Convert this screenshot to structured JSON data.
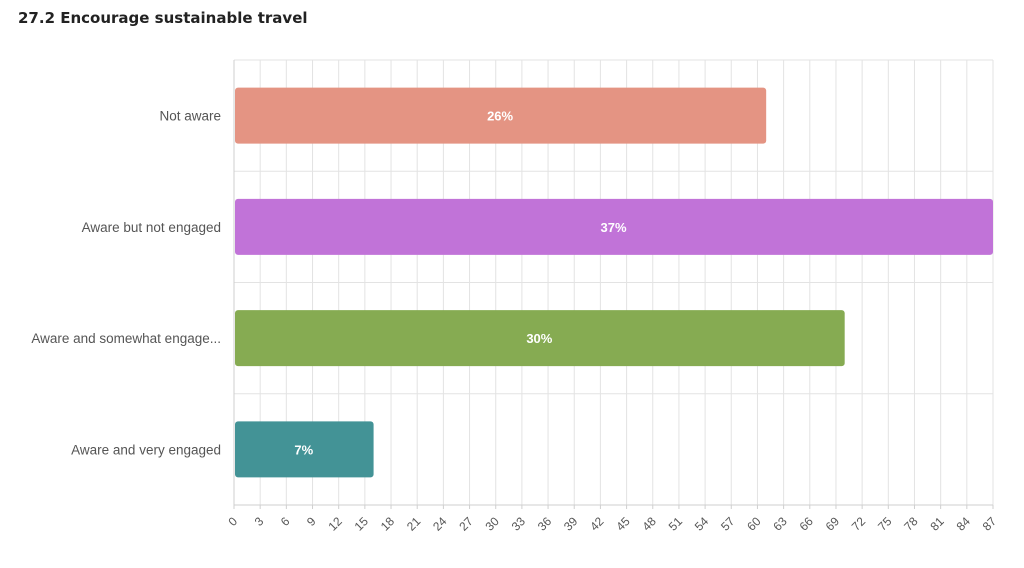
{
  "page": {
    "title": "27.2 Encourage sustainable travel"
  },
  "chart_data": {
    "type": "bar",
    "orientation": "horizontal",
    "title": "27.2 Encourage sustainable travel",
    "categories": [
      "Not aware",
      "Aware but not engaged",
      "Aware and somewhat engage...",
      "Aware and very engaged"
    ],
    "values": [
      61,
      87,
      70,
      16
    ],
    "data_labels": [
      "26%",
      "37%",
      "30%",
      "7%"
    ],
    "colors": [
      "#e49483",
      "#c173d8",
      "#86ab52",
      "#439396"
    ],
    "xlim": [
      0,
      87
    ],
    "xticks": [
      0,
      3,
      6,
      9,
      12,
      15,
      18,
      21,
      24,
      27,
      30,
      33,
      36,
      39,
      42,
      45,
      48,
      51,
      54,
      57,
      60,
      63,
      66,
      69,
      72,
      75,
      78,
      81,
      84,
      87
    ],
    "grid": true,
    "xlabel": "",
    "ylabel": ""
  }
}
